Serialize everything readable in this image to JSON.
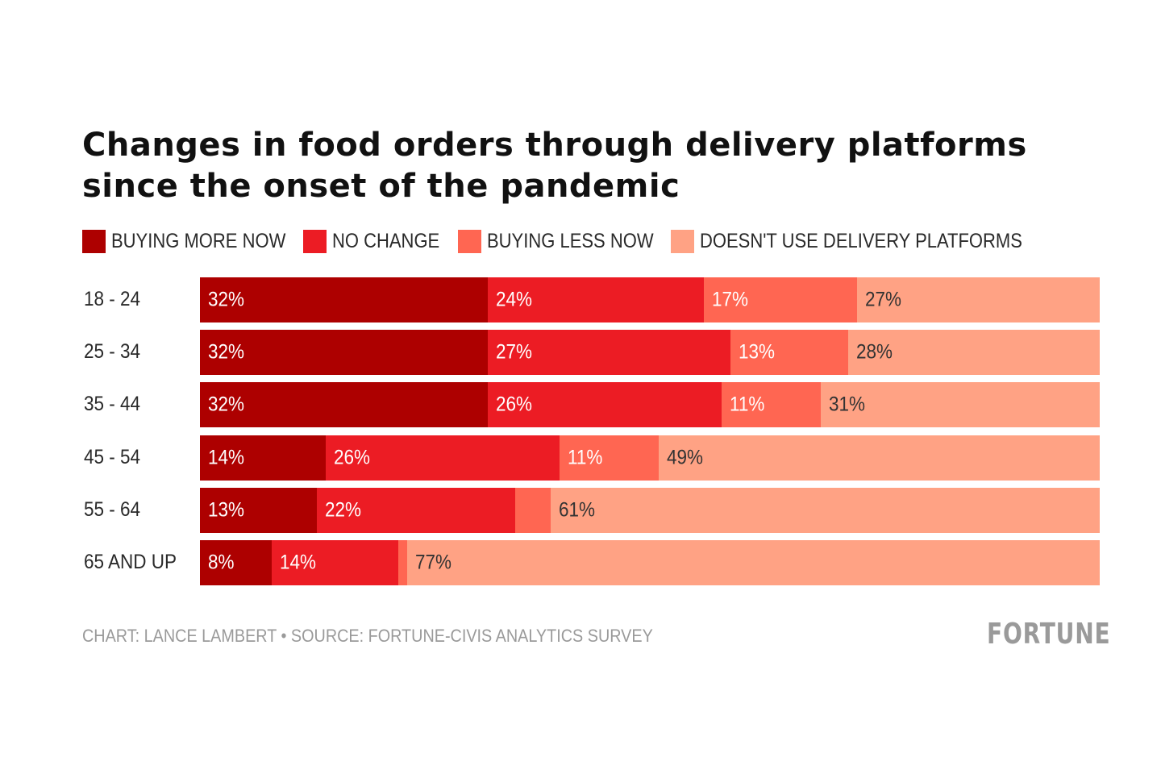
{
  "chart_data": {
    "type": "bar",
    "orientation": "horizontal",
    "stacked": true,
    "title": "Changes in food orders through delivery platforms since the onset of the pandemic",
    "title_lines": [
      "Changes in food orders through delivery platforms",
      "since the onset of the pandemic"
    ],
    "categories": [
      "18 - 24",
      "25 - 34",
      "35 - 44",
      "45 - 54",
      "55 - 64",
      "65 AND UP"
    ],
    "series": [
      {
        "name": "BUYING MORE NOW",
        "color": "#ad0000",
        "label_color": "#ffffff",
        "values": [
          32,
          32,
          32,
          14,
          13,
          8
        ],
        "labels": [
          "32%",
          "32%",
          "32%",
          "14%",
          "13%",
          "8%"
        ]
      },
      {
        "name": "NO CHANGE",
        "color": "#ec1c24",
        "label_color": "#ffffff",
        "values": [
          24,
          27,
          26,
          26,
          22,
          14
        ],
        "labels": [
          "24%",
          "27%",
          "26%",
          "26%",
          "22%",
          "14%"
        ]
      },
      {
        "name": "BUYING LESS NOW",
        "color": "#ff6652",
        "label_color": "#ffffff",
        "values": [
          17,
          13,
          11,
          11,
          4,
          1
        ],
        "labels": [
          "17%",
          "13%",
          "11%",
          "11%",
          "",
          ""
        ]
      },
      {
        "name": "DOESN'T USE DELIVERY PLATFORMS",
        "color": "#ffa284",
        "label_color": "#333333",
        "values": [
          27,
          28,
          31,
          49,
          61,
          77
        ],
        "labels": [
          "27%",
          "28%",
          "31%",
          "49%",
          "61%",
          "77%"
        ]
      }
    ],
    "xlim": [
      0,
      100
    ],
    "unit": "%",
    "legend_position": "top-left",
    "grid": false
  },
  "footer": {
    "credit": "CHART: LANCE LAMBERT • SOURCE: FORTUNE-CIVIS ANALYTICS SURVEY",
    "brand": "FORTUNE"
  }
}
